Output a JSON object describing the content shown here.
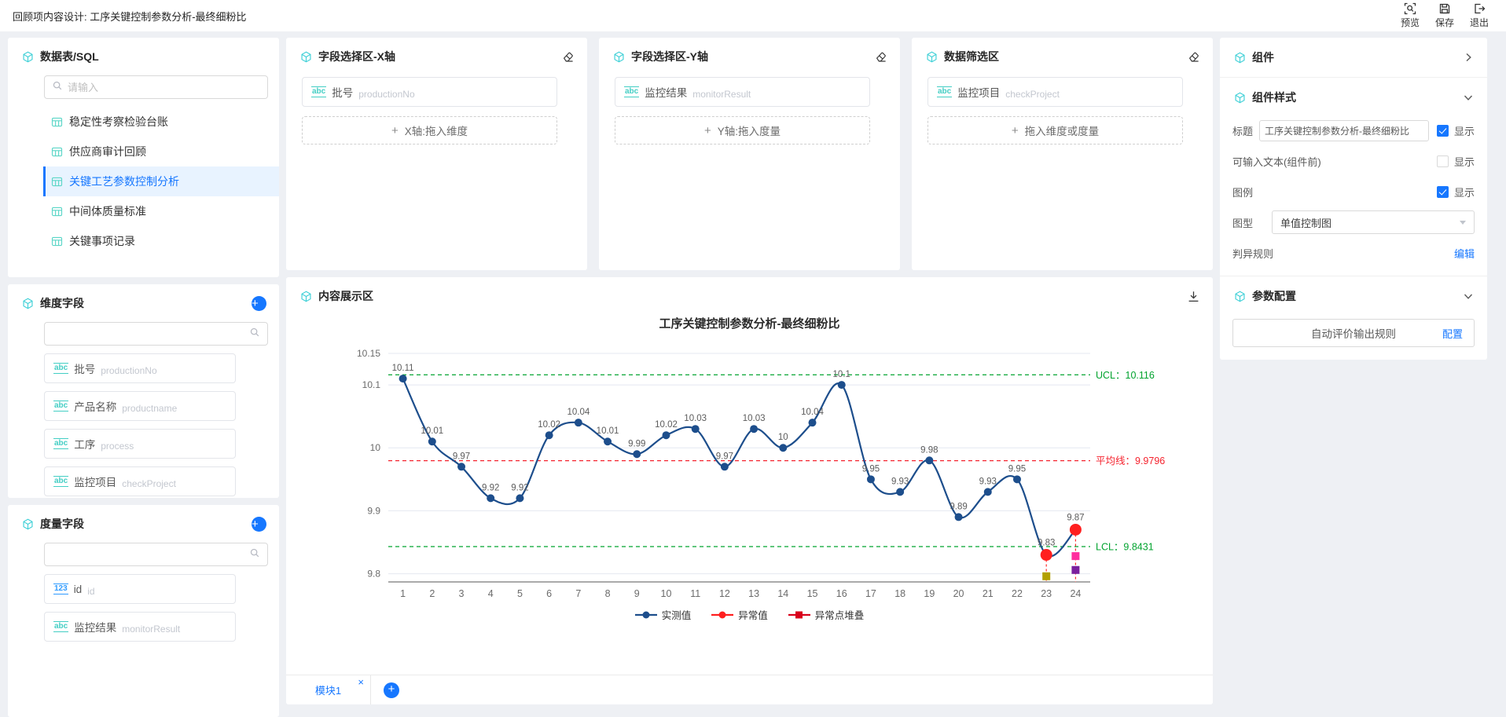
{
  "topbar": {
    "title": "回顾项内容设计: 工序关键控制参数分析-最终细粉比",
    "actions": [
      {
        "label": "预览",
        "icon": "preview-icon"
      },
      {
        "label": "保存",
        "icon": "save-icon"
      },
      {
        "label": "退出",
        "icon": "exit-icon"
      }
    ]
  },
  "datasource_panel": {
    "title": "数据表/SQL",
    "search_placeholder": "请输入",
    "tables": [
      {
        "label": "稳定性考察检验台账",
        "selected": false
      },
      {
        "label": "供应商审计回顾",
        "selected": false
      },
      {
        "label": "关键工艺参数控制分析",
        "selected": true
      },
      {
        "label": "中间体质量标准",
        "selected": false
      },
      {
        "label": "关键事项记录",
        "selected": false
      }
    ]
  },
  "dimension_panel": {
    "title": "维度字段",
    "fields": [
      {
        "type": "abc",
        "name": "批号",
        "code": "productionNo"
      },
      {
        "type": "abc",
        "name": "产品名称",
        "code": "productname"
      },
      {
        "type": "abc",
        "name": "工序",
        "code": "process"
      },
      {
        "type": "abc",
        "name": "监控项目",
        "code": "checkProject"
      }
    ]
  },
  "measure_panel": {
    "title": "度量字段",
    "fields": [
      {
        "type": "123",
        "name": "id",
        "code": "id"
      },
      {
        "type": "abc",
        "name": "监控结果",
        "code": "monitorResult"
      }
    ]
  },
  "x_axis_panel": {
    "title": "字段选择区-X轴",
    "chip": {
      "type": "abc",
      "name": "批号",
      "code": "productionNo"
    },
    "drop_label": "X轴:拖入维度"
  },
  "y_axis_panel": {
    "title": "字段选择区-Y轴",
    "chip": {
      "type": "abc",
      "name": "监控结果",
      "code": "monitorResult"
    },
    "drop_label": "Y轴:拖入度量"
  },
  "filter_panel": {
    "title": "数据筛选区",
    "chip": {
      "type": "abc",
      "name": "监控项目",
      "code": "checkProject"
    },
    "drop_label": "拖入维度或度量"
  },
  "content_panel": {
    "title": "内容展示区",
    "tab": "模块1"
  },
  "right_panel": {
    "component": {
      "title": "组件"
    },
    "style": {
      "title": "组件样式",
      "title_label": "标题",
      "title_value": "工序关键控制参数分析-最终细粉比",
      "show_label": "显示",
      "input_text_label": "可输入文本(组件前)",
      "legend_label": "图例",
      "chart_type_label": "图型",
      "chart_type_value": "单值控制图",
      "rule_label": "判异规则",
      "edit_label": "编辑"
    },
    "params": {
      "title": "参数配置",
      "rule_text": "自动评价输出规则",
      "config_label": "配置"
    }
  },
  "chart_data": {
    "type": "line",
    "title": "工序关键控制参数分析-最终细粉比",
    "x": [
      1,
      2,
      3,
      4,
      5,
      6,
      7,
      8,
      9,
      10,
      11,
      12,
      13,
      14,
      15,
      16,
      17,
      18,
      19,
      20,
      21,
      22,
      23,
      24
    ],
    "values": [
      10.11,
      10.01,
      9.97,
      9.92,
      9.92,
      10.02,
      10.04,
      10.01,
      9.99,
      10.02,
      10.03,
      9.97,
      10.03,
      10,
      10.04,
      10.1,
      9.95,
      9.93,
      9.98,
      9.89,
      9.93,
      9.95,
      9.83,
      9.87
    ],
    "abnormal_x": [
      23,
      24
    ],
    "ucl": {
      "label": "UCL：10.116",
      "value": 10.116
    },
    "mean": {
      "label": "平均线：9.9796",
      "value": 9.9796
    },
    "lcl": {
      "label": "LCL：9.8431",
      "value": 9.8431
    },
    "yticks": [
      9.8,
      9.9,
      10,
      10.1,
      10.15
    ],
    "ylim": [
      9.787,
      10.15
    ],
    "grid": true,
    "legend_position": "bottom",
    "legend": [
      {
        "label": "实测值",
        "color": "#1d4e8c",
        "marker": "circle"
      },
      {
        "label": "异常值",
        "color": "#ff1f1f",
        "marker": "circle"
      },
      {
        "label": "异常点堆叠",
        "color": "#d9001b",
        "marker": "square"
      }
    ],
    "stacked_markers": [
      {
        "x": 23,
        "value": 9.796,
        "color": "#b3a000"
      },
      {
        "x": 24,
        "value": 9.828,
        "color": "#ff2e9e"
      },
      {
        "x": 24,
        "value": 9.806,
        "color": "#7a1f9e"
      }
    ],
    "colors": {
      "series": "#1d4e8c",
      "abnormal": "#ff1f1f",
      "ucl_lcl": "#00a32e",
      "mean": "#f5222d",
      "grid": "#e4e8f1",
      "axis": "#555555",
      "label": "#5c5c5c"
    }
  }
}
